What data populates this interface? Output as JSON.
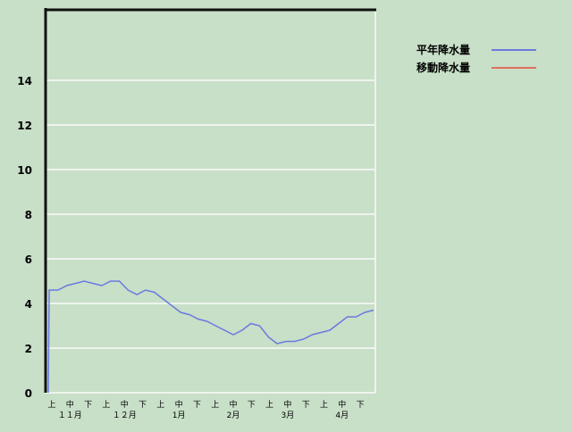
{
  "chart_data": {
    "type": "line",
    "title": "",
    "xlabel": "",
    "ylabel": "",
    "ylim": [
      0,
      17.2
    ],
    "yticks": [
      0,
      2,
      4,
      6,
      8,
      10,
      12,
      14
    ],
    "grid": true,
    "legend_position": "top-right",
    "months": [
      "１１月",
      "１２月",
      "1月",
      "2月",
      "3月",
      "4月"
    ],
    "periods": [
      "上",
      "中",
      "下"
    ],
    "series": [
      {
        "name": "平年降水量",
        "color": "#6a7ae0",
        "start_value": 0,
        "values": [
          4.6,
          4.6,
          4.8,
          4.9,
          5.0,
          4.9,
          4.8,
          5.0,
          5.0,
          4.6,
          4.4,
          4.6,
          4.5,
          4.2,
          3.9,
          3.6,
          3.5,
          3.3,
          3.2,
          3.0,
          2.8,
          2.6,
          2.8,
          3.1,
          3.0,
          2.5,
          2.2,
          2.3,
          2.3,
          2.4,
          2.6,
          2.7,
          2.8,
          3.1,
          3.4,
          3.4,
          3.6,
          3.7
        ]
      },
      {
        "name": "移動降水量",
        "color": "#e07060",
        "values": []
      }
    ]
  }
}
